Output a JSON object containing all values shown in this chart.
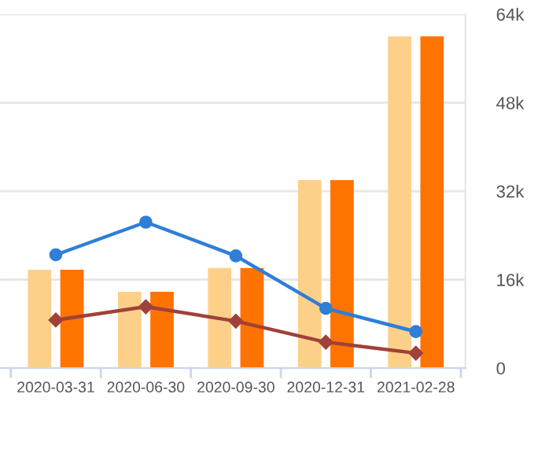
{
  "chart_data": {
    "type": "bar",
    "categories": [
      "2020-03-31",
      "2020-06-30",
      "2020-09-30",
      "2020-12-31",
      "2021-02-28"
    ],
    "series": [
      {
        "color": "#fdd08a",
        "values": [
          17.8,
          13.8,
          18.1,
          34,
          60
        ]
      },
      {
        "color": "#ff7300",
        "values": [
          17.8,
          13.8,
          18.1,
          34,
          60
        ]
      },
      {
        "type": "line",
        "color": "#2f7ed8",
        "marker": "circle",
        "values": [
          20.5,
          26.4,
          20.3,
          10.8,
          6.6
        ]
      },
      {
        "type": "line",
        "color": "#a0413a",
        "marker": "diamond",
        "values": [
          8.7,
          11.1,
          8.5,
          4.7,
          2.7
        ]
      }
    ],
    "ylim": [
      0,
      64
    ],
    "yticks": [
      {
        "value": 0,
        "label": "0"
      },
      {
        "value": 16,
        "label": "16k"
      },
      {
        "value": 32,
        "label": "32k"
      },
      {
        "value": 48,
        "label": "48k"
      },
      {
        "value": 64,
        "label": "64k"
      }
    ],
    "grid": "y",
    "legend": false
  }
}
